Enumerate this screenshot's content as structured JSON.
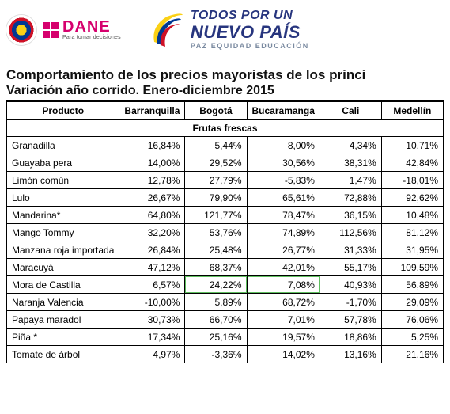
{
  "branding": {
    "dane_word": "DANE",
    "dane_sub": "Para tomar decisiones",
    "slogan_line1": "TODOS POR UN",
    "slogan_line2": "NUEVO PAÍS",
    "slogan_line3": "PAZ  EQUIDAD  EDUCACIÓN",
    "colors": {
      "magenta": "#d6006d",
      "navy": "#27357e",
      "flag_yellow": "#fbd116",
      "flag_blue": "#003893",
      "flag_red": "#ce1126",
      "highlight_border": "#5fbf5f"
    }
  },
  "titles": {
    "line1": "Comportamiento de los precios mayoristas de los princi",
    "line2": "Variación año corrido. Enero-diciembre 2015"
  },
  "table": {
    "columns": [
      "Producto",
      "Barranquilla",
      "Bogotá",
      "Bucaramanga",
      "Cali",
      "Medellín"
    ],
    "section": "Frutas frescas",
    "highlight": {
      "row": 8,
      "cols": [
        2,
        3
      ]
    },
    "rows": [
      {
        "p": "Granadilla",
        "v": [
          "16,84%",
          "5,44%",
          "8,00%",
          "4,34%",
          "10,71%"
        ]
      },
      {
        "p": "Guayaba pera",
        "v": [
          "14,00%",
          "29,52%",
          "30,56%",
          "38,31%",
          "42,84%"
        ]
      },
      {
        "p": "Limón común",
        "v": [
          "12,78%",
          "27,79%",
          "-5,83%",
          "1,47%",
          "-18,01%"
        ]
      },
      {
        "p": "Lulo",
        "v": [
          "26,67%",
          "79,90%",
          "65,61%",
          "72,88%",
          "92,62%"
        ]
      },
      {
        "p": "Mandarina*",
        "v": [
          "64,80%",
          "121,77%",
          "78,47%",
          "36,15%",
          "10,48%"
        ]
      },
      {
        "p": "Mango Tommy",
        "v": [
          "32,20%",
          "53,76%",
          "74,89%",
          "112,56%",
          "81,12%"
        ]
      },
      {
        "p": "Manzana roja importada",
        "v": [
          "26,84%",
          "25,48%",
          "26,77%",
          "31,33%",
          "31,95%"
        ]
      },
      {
        "p": "Maracuyá",
        "v": [
          "47,12%",
          "68,37%",
          "42,01%",
          "55,17%",
          "109,59%"
        ]
      },
      {
        "p": "Mora de Castilla",
        "v": [
          "6,57%",
          "24,22%",
          "7,08%",
          "40,93%",
          "56,89%"
        ]
      },
      {
        "p": "Naranja Valencia",
        "v": [
          "-10,00%",
          "5,89%",
          "68,72%",
          "-1,70%",
          "29,09%"
        ]
      },
      {
        "p": "Papaya maradol",
        "v": [
          "30,73%",
          "66,70%",
          "7,01%",
          "57,78%",
          "76,06%"
        ]
      },
      {
        "p": "Piña *",
        "v": [
          "17,34%",
          "25,16%",
          "19,57%",
          "18,86%",
          "5,25%"
        ]
      },
      {
        "p": "Tomate de árbol",
        "v": [
          "4,97%",
          "-3,36%",
          "14,02%",
          "13,16%",
          "21,16%"
        ]
      }
    ]
  }
}
